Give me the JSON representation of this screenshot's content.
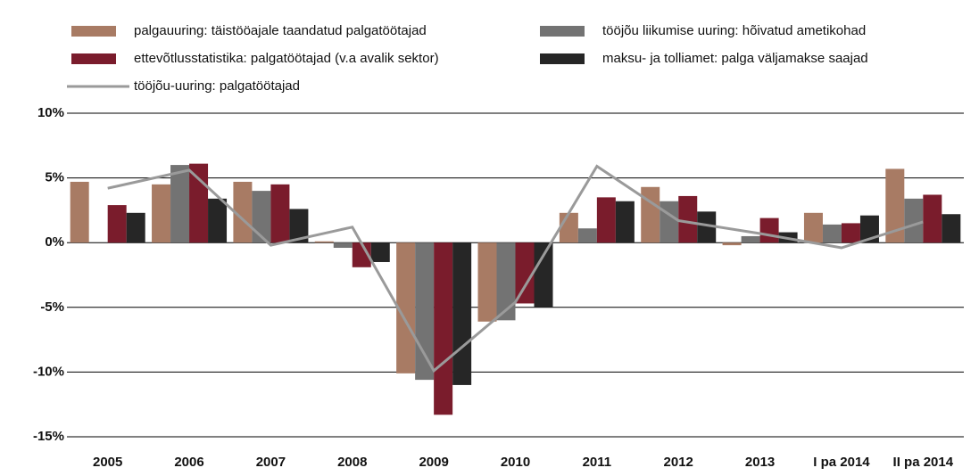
{
  "chart_data": {
    "type": "bar",
    "categories": [
      "2005",
      "2006",
      "2007",
      "2008",
      "2009",
      "2010",
      "2011",
      "2012",
      "2013",
      "I pa 2014",
      "II pa 2014"
    ],
    "series": [
      {
        "name": "palgauuring: täistööajale taandatud palgatöötajad",
        "color": "#a87b64",
        "values": [
          4.7,
          4.5,
          4.7,
          0.1,
          -10.1,
          -6.1,
          2.3,
          4.3,
          -0.2,
          2.3,
          5.7
        ]
      },
      {
        "name": "tööjõu liikumise uuring: hõivatud ametikohad",
        "color": "#737373",
        "values": [
          null,
          6.0,
          4.0,
          -0.4,
          -10.6,
          -6.0,
          1.1,
          3.2,
          0.5,
          1.4,
          3.4
        ]
      },
      {
        "name": "ettevõtlusstatistika: palgatöötajad (v.a avalik sektor)",
        "color": "#7a1c2c",
        "values": [
          2.9,
          6.1,
          4.5,
          -1.9,
          -13.3,
          -4.7,
          3.5,
          3.6,
          1.9,
          1.5,
          3.7
        ]
      },
      {
        "name": "maksu- ja tolliamet: palga väljamakse saajad",
        "color": "#262626",
        "values": [
          2.3,
          3.4,
          2.6,
          -1.5,
          -11.0,
          -5.0,
          3.2,
          2.4,
          0.8,
          2.1,
          2.2
        ]
      },
      {
        "name": "tööjõu-uuring: palgatöötajad",
        "color": "#9a9a9a",
        "type": "line",
        "values": [
          4.2,
          5.6,
          -0.2,
          1.2,
          -9.9,
          -4.6,
          5.9,
          1.7,
          0.7,
          -0.4,
          1.6
        ]
      }
    ],
    "ylim": [
      -15,
      10
    ],
    "yticks": [
      {
        "value": -15,
        "label": "-15%"
      },
      {
        "value": -10,
        "label": "-10%"
      },
      {
        "value": -5,
        "label": "-5%"
      },
      {
        "value": 0,
        "label": "0%"
      },
      {
        "value": 5,
        "label": "5%"
      },
      {
        "value": 10,
        "label": "10%"
      }
    ],
    "grid": true
  }
}
